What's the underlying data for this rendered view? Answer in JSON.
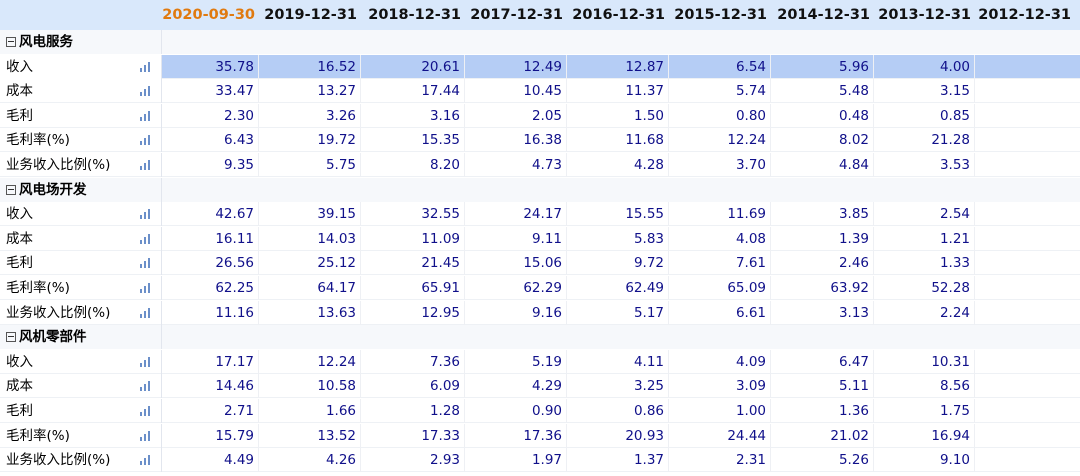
{
  "header": {
    "dates": [
      "2020-09-30",
      "2019-12-31",
      "2018-12-31",
      "2017-12-31",
      "2016-12-31",
      "2015-12-31",
      "2014-12-31",
      "2013-12-31",
      "2012-12-31"
    ],
    "overflow": "2"
  },
  "groups": [
    {
      "name": "风电服务",
      "rows": [
        {
          "label": "收入",
          "values": [
            "35.78",
            "16.52",
            "20.61",
            "12.49",
            "12.87",
            "6.54",
            "5.96",
            "4.00"
          ],
          "selected": true
        },
        {
          "label": "成本",
          "values": [
            "33.47",
            "13.27",
            "17.44",
            "10.45",
            "11.37",
            "5.74",
            "5.48",
            "3.15"
          ]
        },
        {
          "label": "毛利",
          "values": [
            "2.30",
            "3.26",
            "3.16",
            "2.05",
            "1.50",
            "0.80",
            "0.48",
            "0.85"
          ]
        },
        {
          "label": "毛利率(%)",
          "values": [
            "6.43",
            "19.72",
            "15.35",
            "16.38",
            "11.68",
            "12.24",
            "8.02",
            "21.28"
          ]
        },
        {
          "label": "业务收入比例(%)",
          "values": [
            "9.35",
            "5.75",
            "8.20",
            "4.73",
            "4.28",
            "3.70",
            "4.84",
            "3.53"
          ]
        }
      ]
    },
    {
      "name": "风电场开发",
      "rows": [
        {
          "label": "收入",
          "values": [
            "42.67",
            "39.15",
            "32.55",
            "24.17",
            "15.55",
            "11.69",
            "3.85",
            "2.54"
          ]
        },
        {
          "label": "成本",
          "values": [
            "16.11",
            "14.03",
            "11.09",
            "9.11",
            "5.83",
            "4.08",
            "1.39",
            "1.21"
          ]
        },
        {
          "label": "毛利",
          "values": [
            "26.56",
            "25.12",
            "21.45",
            "15.06",
            "9.72",
            "7.61",
            "2.46",
            "1.33"
          ]
        },
        {
          "label": "毛利率(%)",
          "values": [
            "62.25",
            "64.17",
            "65.91",
            "62.29",
            "62.49",
            "65.09",
            "63.92",
            "52.28"
          ]
        },
        {
          "label": "业务收入比例(%)",
          "values": [
            "11.16",
            "13.63",
            "12.95",
            "9.16",
            "5.17",
            "6.61",
            "3.13",
            "2.24"
          ]
        }
      ]
    },
    {
      "name": "风机零部件",
      "rows": [
        {
          "label": "收入",
          "values": [
            "17.17",
            "12.24",
            "7.36",
            "5.19",
            "4.11",
            "4.09",
            "6.47",
            "10.31"
          ]
        },
        {
          "label": "成本",
          "values": [
            "14.46",
            "10.58",
            "6.09",
            "4.29",
            "3.25",
            "3.09",
            "5.11",
            "8.56"
          ]
        },
        {
          "label": "毛利",
          "values": [
            "2.71",
            "1.66",
            "1.28",
            "0.90",
            "0.86",
            "1.00",
            "1.36",
            "1.75"
          ]
        },
        {
          "label": "毛利率(%)",
          "values": [
            "15.79",
            "13.52",
            "17.33",
            "17.36",
            "20.93",
            "24.44",
            "21.02",
            "16.94"
          ]
        },
        {
          "label": "业务收入比例(%)",
          "values": [
            "4.49",
            "4.26",
            "2.93",
            "1.97",
            "1.37",
            "2.31",
            "5.26",
            "9.10"
          ]
        }
      ]
    }
  ]
}
